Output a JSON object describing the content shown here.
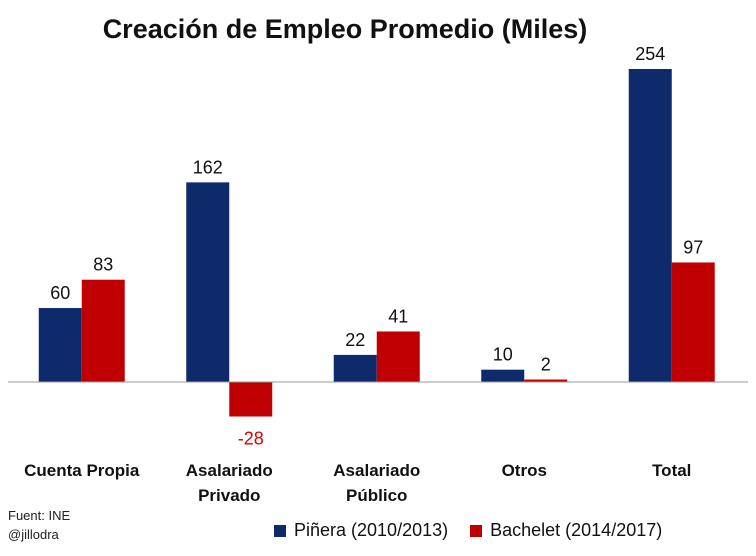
{
  "chart_data": {
    "type": "bar",
    "title": "Creación de Empleo Promedio (Miles)",
    "categories": [
      [
        "Cuenta Propia"
      ],
      [
        "Asalariado",
        "Privado"
      ],
      [
        "Asalariado",
        "Público"
      ],
      [
        "Otros"
      ],
      [
        "Total"
      ]
    ],
    "series": [
      {
        "name": "Piñera (2010/2013)",
        "color": "#0E2A6B",
        "values": [
          60,
          162,
          22,
          10,
          254
        ]
      },
      {
        "name": "Bachelet (2014/2017)",
        "color": "#C00000",
        "values": [
          83,
          -28,
          41,
          2,
          97
        ]
      }
    ],
    "negative_label_color": "#E00000",
    "xlabel": "",
    "ylabel": "",
    "ylim": [
      -30,
      260
    ],
    "grid": false,
    "legend": "bottom-right"
  },
  "source": {
    "line1": "Fuent: INE",
    "line2": "@jillodra"
  }
}
